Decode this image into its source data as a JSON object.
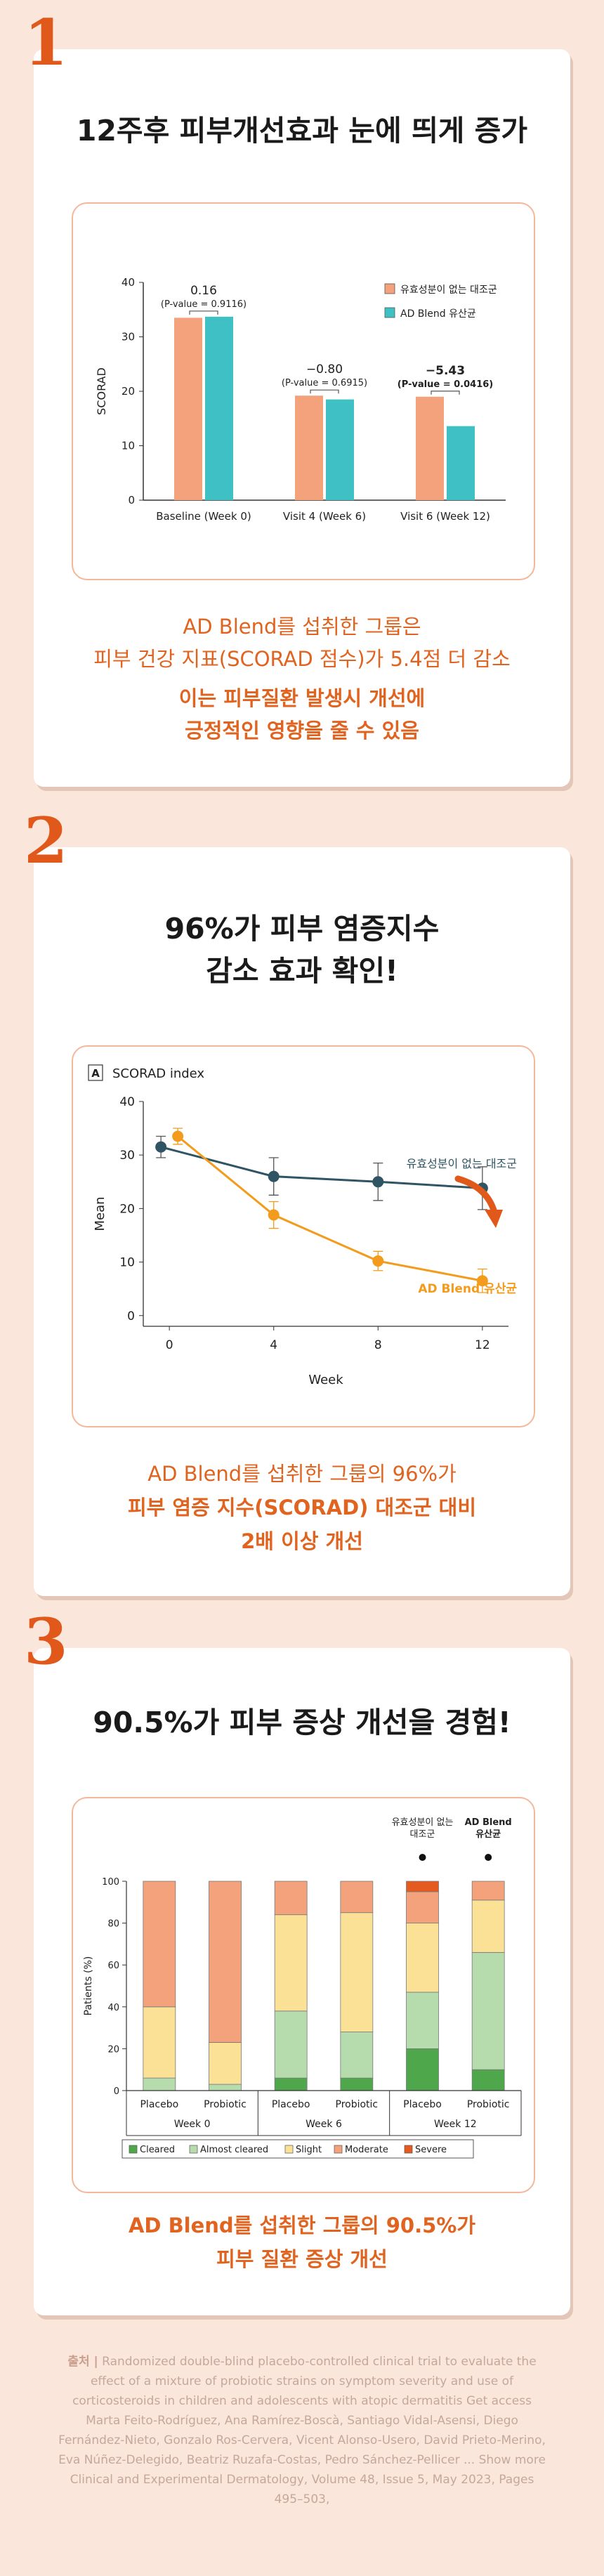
{
  "sections": [
    {
      "number": "1",
      "heading": "12주후 피부개선효과 눈에 띄게 증가",
      "body_lines": [
        "AD Blend를 섭취한 그룹은",
        "피부 건강 지표(SCORAD 점수)가 5.4점 더 감소"
      ],
      "highlight_lines": [
        "이는 피부질환 발생시 개선에",
        "긍정적인 영향을 줄 수 있음"
      ]
    },
    {
      "number": "2",
      "heading_lines": [
        "96%가 피부 염증지수",
        "감소 효과 확인!"
      ],
      "body_lines": [
        "AD Blend를 섭취한 그룹의 96%가"
      ],
      "highlight_lines": [
        "피부 염증 지수(SCORAD) 대조군 대비",
        "2배 이상 개선"
      ]
    },
    {
      "number": "3",
      "heading": "90.5%가 피부 증상 개선을 경험!",
      "highlight_lines": [
        "AD Blend를 섭취한 그룹의 90.5%가",
        "피부 질환 증상 개선"
      ]
    }
  ],
  "chart_data": [
    {
      "type": "bar",
      "ylabel": "SCORAD",
      "ylim": [
        0,
        40
      ],
      "yticks": [
        0,
        10,
        20,
        30,
        40
      ],
      "categories": [
        "Baseline (Week 0)",
        "Visit 4 (Week 6)",
        "Visit 6 (Week 12)"
      ],
      "series": [
        {
          "name": "유효성분이 없는 대조군",
          "values": [
            33.5,
            19.2,
            19.0
          ],
          "color": "#f4a27c"
        },
        {
          "name": "AD Blend 유산균",
          "values": [
            33.7,
            18.5,
            13.6
          ],
          "color": "#3ec0c4"
        }
      ],
      "annotations": [
        {
          "diff": "0.16",
          "pvalue": "(P-value = 0.9116)"
        },
        {
          "diff": "−0.80",
          "pvalue": "(P-value = 0.6915)"
        },
        {
          "diff": "−5.43",
          "pvalue": "(P-value = 0.0416)"
        }
      ],
      "legend_position": "top-right"
    },
    {
      "type": "line",
      "panel_label": "A",
      "title": "SCORAD index",
      "xlabel": "Week",
      "ylabel": "Mean",
      "x": [
        0,
        4,
        8,
        12
      ],
      "xlim": [
        -1,
        13
      ],
      "ylim": [
        -2,
        40
      ],
      "yticks": [
        0,
        10,
        20,
        30,
        40
      ],
      "series": [
        {
          "name": "유효성분이 없는 대조군",
          "values": [
            31.5,
            26.0,
            25.0,
            23.8
          ],
          "err": [
            2.0,
            3.5,
            3.5,
            4.0
          ],
          "color": "#2f5463"
        },
        {
          "name": "AD Blend 유산균",
          "values": [
            33.5,
            18.8,
            10.2,
            6.5
          ],
          "err": [
            1.5,
            2.5,
            1.8,
            2.2
          ],
          "color": "#f39b1c"
        }
      ]
    },
    {
      "type": "bar",
      "stacked": true,
      "ylabel": "Patients (%)",
      "ylim": [
        0,
        100
      ],
      "yticks": [
        0,
        20,
        40,
        60,
        80,
        100
      ],
      "categories": [
        "Placebo",
        "Probiotic",
        "Placebo",
        "Probiotic",
        "Placebo",
        "Probiotic"
      ],
      "groups": [
        "Week 0",
        "Week 6",
        "Week 12"
      ],
      "markers": [
        {
          "bar": 4,
          "label_lines": [
            "유효성분이 없는",
            "대조군"
          ],
          "bold": false
        },
        {
          "bar": 5,
          "label_lines": [
            "AD Blend",
            "유산균"
          ],
          "bold": true
        }
      ],
      "series": [
        {
          "name": "Cleared",
          "color": "#4ea84b",
          "values": [
            0,
            0,
            6,
            6,
            20,
            10
          ]
        },
        {
          "name": "Almost cleared",
          "color": "#b6dcae",
          "values": [
            6,
            3,
            32,
            22,
            27,
            56
          ]
        },
        {
          "name": "Slight",
          "color": "#fbe196",
          "values": [
            34,
            20,
            46,
            57,
            33,
            25
          ]
        },
        {
          "name": "Moderate",
          "color": "#f4a27c",
          "values": [
            60,
            77,
            16,
            15,
            15,
            9
          ]
        },
        {
          "name": "Severe",
          "color": "#e55a1e",
          "values": [
            0,
            0,
            0,
            0,
            5,
            0
          ]
        }
      ],
      "legend_position": "bottom"
    }
  ],
  "source": {
    "label": "출처 |",
    "text": "Randomized double-blind placebo-controlled clinical trial to evaluate the effect of a mixture of probiotic strains on symptom severity and use of corticosteroids in children and adolescents with atopic dermatitis Get access Marta Feito-Rodríguez, Ana Ramírez-Boscà, Santiago Vidal-Asensi, Diego Fernández-Nieto, Gonzalo Ros-Cervera, Vicent Alonso-Usero, David Prieto-Merino, Eva Núñez-Delegido, Beatriz Ruzafa-Costas, Pedro Sánchez-Pellicer ... Show more Clinical and Experimental Dermatology, Volume 48, Issue 5, May 2023, Pages 495–503,"
  }
}
